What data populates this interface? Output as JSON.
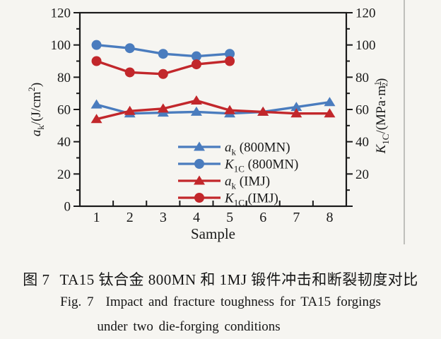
{
  "figure": {
    "caption_zh": {
      "label": "图 7",
      "text": "TA15 钛合金 800MN 和 1MJ 锻件冲击和断裂韧度对比"
    },
    "caption_en": {
      "label": "Fig. 7",
      "line1": "Impact and fracture toughness for TA15 forgings",
      "line2": "under two die-forging conditions"
    }
  },
  "colors": {
    "series_blue": "#4a7cbe",
    "series_red": "#c2272b",
    "axis": "#1a1a1a",
    "page_background": "#f6f5f1",
    "column_divider": "#bfbfbb"
  },
  "chart_data": {
    "type": "line",
    "title": "",
    "xlabel": "Sample",
    "x_categories": [
      "1",
      "2",
      "3",
      "4",
      "5",
      "6",
      "7",
      "8"
    ],
    "xlim": [
      0.5,
      8.5
    ],
    "ylim": [
      0,
      120
    ],
    "grid": false,
    "legend_position": "inside-bottom-center",
    "y_major_ticks": [
      0,
      20,
      40,
      60,
      80,
      100,
      120
    ],
    "y_minor_step": 10,
    "x_minor_ticks": [
      1.5,
      2.5,
      3.5,
      4.5,
      5.5,
      6.5,
      7.5
    ],
    "left_axis": {
      "label": "ak/(J/cm²)",
      "label_parts": [
        {
          "t": "a",
          "i": true
        },
        {
          "t": "k",
          "sub": true
        },
        {
          "t": "/(J/cm"
        },
        {
          "t": "2",
          "sup": true
        },
        {
          "t": ")"
        }
      ],
      "tick_labels": [
        0,
        20,
        40,
        60,
        80,
        100,
        120
      ]
    },
    "right_axis": {
      "label": "K1C/(MPa·m^(1/2))",
      "label_parts": [
        {
          "t": "K",
          "i": true
        },
        {
          "t": "1C",
          "sub": true
        },
        {
          "t": "/(MPa·m"
        },
        {
          "t": "1",
          "frac": "num"
        },
        {
          "t": "2",
          "frac": "den"
        },
        {
          "t": ")"
        }
      ],
      "tick_labels": [
        20,
        40,
        60,
        80,
        100,
        120
      ]
    },
    "series": [
      {
        "label": "ak (800MN)",
        "label_parts": [
          {
            "t": "a",
            "i": true
          },
          {
            "t": "k",
            "sub": true
          },
          {
            "t": " (800MN)"
          }
        ],
        "axis": "left",
        "marker": "triangle",
        "color": "#4a7cbe",
        "x": [
          1,
          2,
          3,
          4,
          5,
          6,
          7,
          8
        ],
        "values": [
          63,
          57.5,
          58,
          58.5,
          57.5,
          58.5,
          61.5,
          64.5
        ]
      },
      {
        "label": "K1C (800MN)",
        "label_parts": [
          {
            "t": "K",
            "i": true
          },
          {
            "t": "1C",
            "sub": true
          },
          {
            "t": " (800MN)"
          }
        ],
        "axis": "right",
        "marker": "circle",
        "color": "#4a7cbe",
        "x": [
          1,
          2,
          3,
          4,
          5
        ],
        "values": [
          100,
          98,
          94.5,
          93,
          94.5
        ]
      },
      {
        "label": "ak (IMJ)",
        "label_parts": [
          {
            "t": "a",
            "i": true
          },
          {
            "t": "k",
            "sub": true
          },
          {
            "t": " (IMJ)"
          }
        ],
        "axis": "left",
        "marker": "triangle",
        "color": "#c2272b",
        "x": [
          1,
          2,
          3,
          4,
          5,
          6,
          7,
          8
        ],
        "values": [
          54,
          59,
          60.5,
          65.5,
          59.5,
          58.5,
          57.5,
          57.5
        ]
      },
      {
        "label": "K1C (IMJ)",
        "label_parts": [
          {
            "t": "K",
            "i": true
          },
          {
            "t": "1C",
            "sub": true
          },
          {
            "t": " (IMJ)"
          }
        ],
        "axis": "right",
        "marker": "circle",
        "color": "#c2272b",
        "x": [
          1,
          2,
          3,
          4,
          5
        ],
        "values": [
          90,
          83,
          82,
          88,
          90
        ]
      }
    ]
  }
}
